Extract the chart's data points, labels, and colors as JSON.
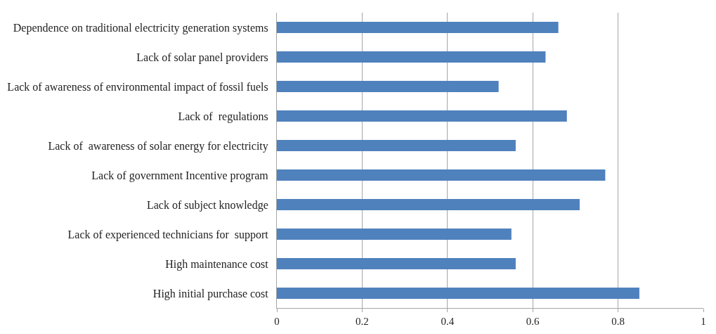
{
  "chart_data": {
    "type": "bar",
    "orientation": "horizontal",
    "categories": [
      "Dependence on traditional electricity generation systems",
      "Lack of solar panel providers",
      "Lack of awareness of environmental impact of fossil fuels",
      "Lack of  regulations",
      "Lack of  awareness of solar energy for electricity",
      "Lack of government Incentive program",
      "Lack of subject knowledge",
      "Lack of experienced technicians for  support",
      "High maintenance cost",
      "High initial purchase cost"
    ],
    "values": [
      0.66,
      0.63,
      0.52,
      0.68,
      0.56,
      0.77,
      0.71,
      0.55,
      0.56,
      0.85
    ],
    "color": "#4f81bd",
    "xlim": [
      0,
      1
    ],
    "xticks": [
      0,
      0.2,
      0.4,
      0.6,
      0.8,
      1
    ],
    "grid": "x"
  }
}
